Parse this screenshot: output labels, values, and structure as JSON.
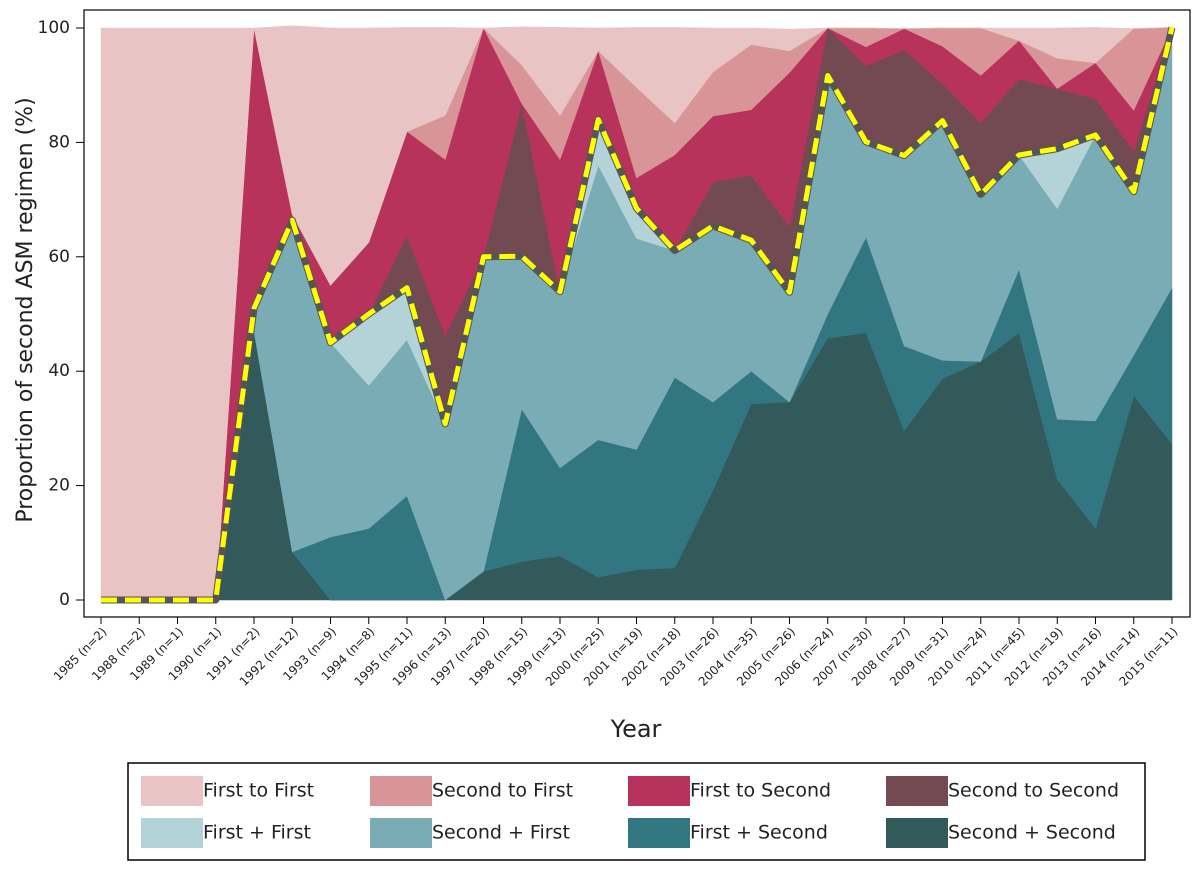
{
  "chart_data": {
    "type": "stacked-area",
    "x_label": "Year",
    "y_label": "Proportion of second ASM regimen (%)",
    "categories": [
      "1985 (n=2)",
      "1988 (n=2)",
      "1989 (n=1)",
      "1990 (n=1)",
      "1991 (n=2)",
      "1992 (n=12)",
      "1993 (n=9)",
      "1994 (n=8)",
      "1995 (n=11)",
      "1996 (n=13)",
      "1997 (n=20)",
      "1998 (n=15)",
      "1999 (n=13)",
      "2000 (n=25)",
      "2001 (n=19)",
      "2002 (n=18)",
      "2003 (n=26)",
      "2004 (n=35)",
      "2005 (n=26)",
      "2006 (n=24)",
      "2007 (n=30)",
      "2008 (n=27)",
      "2009 (n=31)",
      "2010 (n=24)",
      "2011 (n=45)",
      "2012 (n=19)",
      "2013 (n=16)",
      "2014 (n=14)",
      "2015 (n=11)"
    ],
    "series": [
      {
        "name": "First to First",
        "color": "#e8c4c4",
        "values": [
          100,
          100,
          100,
          100,
          0,
          33,
          45,
          37.5,
          18.2,
          15.4,
          0,
          6.7,
          15.4,
          4,
          10.5,
          16.7,
          7.7,
          2.9,
          3.8,
          0,
          0,
          0,
          0,
          0,
          2.2,
          5.3,
          6.2,
          0,
          0
        ]
      },
      {
        "name": "Second to First",
        "color": "#d89496",
        "values": [
          0,
          0,
          0,
          0,
          0,
          0,
          0,
          0,
          0,
          7.7,
          0,
          6.7,
          7.7,
          0,
          15.8,
          5.6,
          7.7,
          11.4,
          3.8,
          0,
          3.3,
          0,
          3.2,
          8.3,
          0,
          5.3,
          0,
          14.3,
          0
        ]
      },
      {
        "name": "First to Second",
        "color": "#b8335c",
        "values": [
          0,
          0,
          0,
          0,
          49,
          1,
          10,
          12.5,
          18.2,
          30.8,
          40,
          0,
          23.1,
          12,
          5.3,
          16.7,
          11.5,
          11.4,
          26.9,
          0,
          3.3,
          3.7,
          6.5,
          8.3,
          6.7,
          0,
          6.3,
          7.1,
          0
        ]
      },
      {
        "name": "Second to Second",
        "color": "#734a52",
        "values": [
          0,
          0,
          0,
          0,
          0,
          0,
          0,
          0,
          9.1,
          15.4,
          0,
          26.7,
          0,
          0,
          0,
          0,
          7.7,
          11.4,
          11.5,
          8.3,
          13.3,
          18.5,
          6.5,
          12.5,
          13.3,
          10.5,
          6.3,
          7.1,
          0
        ]
      },
      {
        "name": "First + First",
        "color": "#b3d3d8",
        "values": [
          0,
          0,
          0,
          0,
          0,
          0,
          0,
          12.5,
          9.1,
          0,
          0,
          0,
          0,
          8,
          5.3,
          0,
          0,
          0,
          0,
          0,
          0,
          0,
          0,
          0,
          0,
          10.5,
          0,
          0,
          0
        ]
      },
      {
        "name": "Second + First",
        "color": "#7aacb5",
        "values": [
          0,
          0,
          0,
          0,
          4,
          58,
          34,
          25,
          27.3,
          30.8,
          55,
          26.7,
          30.8,
          48,
          36.9,
          22.2,
          30.8,
          22.9,
          19.2,
          41.7,
          16.7,
          33.3,
          41.9,
          29.2,
          20,
          36.8,
          50,
          28.6,
          45.5
        ]
      },
      {
        "name": "First + Second",
        "color": "#327682",
        "values": [
          0,
          0,
          0,
          0,
          0,
          0,
          11,
          12.5,
          18.2,
          0,
          0,
          26.7,
          15.4,
          24,
          21,
          33.3,
          15.4,
          5.7,
          0,
          4.2,
          16.7,
          14.8,
          3.2,
          0,
          11.1,
          10.5,
          18.8,
          7.1,
          27.3
        ]
      },
      {
        "name": "Second + Second",
        "color": "#335a5a",
        "values": [
          0,
          0,
          0,
          0,
          47,
          8.4,
          0,
          0,
          0,
          0,
          5,
          6.7,
          7.7,
          4,
          5.3,
          5.6,
          19.2,
          34.3,
          34.6,
          45.8,
          46.7,
          29.6,
          38.7,
          41.7,
          46.7,
          21.1,
          12.5,
          35.7,
          27.3
        ]
      }
    ],
    "ylim": [
      0,
      100
    ],
    "yticks": [
      0,
      20,
      40,
      60,
      80,
      100
    ],
    "highlight_color": "#ffff00"
  }
}
